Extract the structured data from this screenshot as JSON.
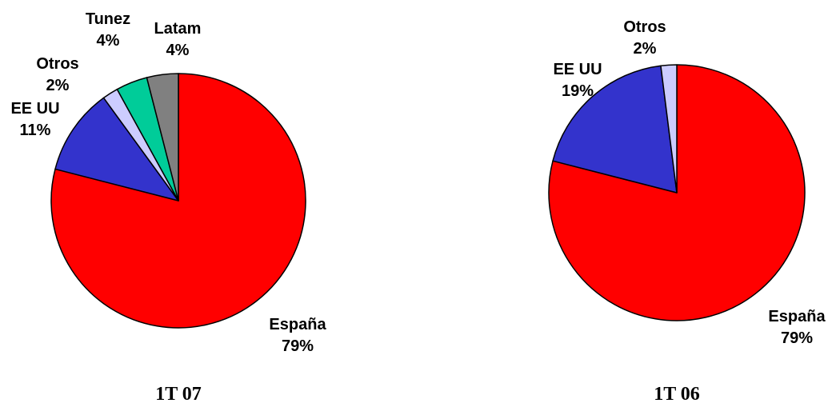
{
  "chart_data": [
    {
      "type": "pie",
      "title": "1T 07",
      "slices": [
        {
          "name": "España",
          "value": 79,
          "label": "79%",
          "color": "#ff0000"
        },
        {
          "name": "EE UU",
          "value": 11,
          "label": "11%",
          "color": "#3333cc"
        },
        {
          "name": "Otros",
          "value": 2,
          "label": "2%",
          "color": "#ccccff"
        },
        {
          "name": "Tunez",
          "value": 4,
          "label": "4%",
          "color": "#00cc99"
        },
        {
          "name": "Latam",
          "value": 4,
          "label": "4%",
          "color": "#808080"
        }
      ]
    },
    {
      "type": "pie",
      "title": "1T 06",
      "slices": [
        {
          "name": "España",
          "value": 79,
          "label": "79%",
          "color": "#ff0000"
        },
        {
          "name": "EE UU",
          "value": 19,
          "label": "19%",
          "color": "#3333cc"
        },
        {
          "name": "Otros",
          "value": 2,
          "label": "2%",
          "color": "#ccccff"
        }
      ]
    }
  ]
}
